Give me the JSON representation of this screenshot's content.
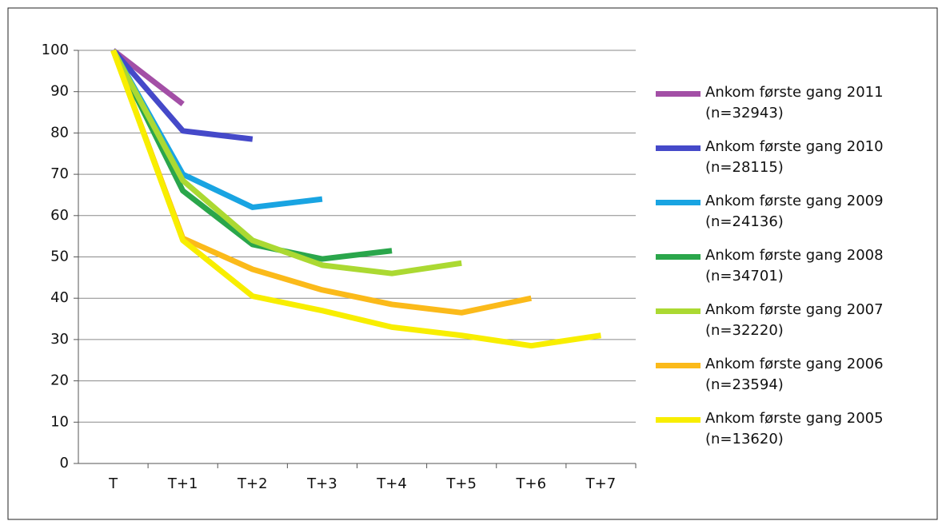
{
  "chart_data": {
    "type": "line",
    "categories": [
      "T",
      "T+1",
      "T+2",
      "T+3",
      "T+4",
      "T+5",
      "T+6",
      "T+7"
    ],
    "ylim": [
      0,
      100
    ],
    "yticks": [
      0,
      10,
      20,
      30,
      40,
      50,
      60,
      70,
      80,
      90,
      100
    ],
    "grid": true,
    "legend": "right",
    "series": [
      {
        "name": "Ankom første gang 2011\n(n=32943)",
        "color": "#a34fa6",
        "values": [
          100,
          87,
          null,
          null,
          null,
          null,
          null,
          null
        ]
      },
      {
        "name": "Ankom første gang 2010\n(n=28115)",
        "color": "#4549c9",
        "values": [
          100,
          80.5,
          78.5,
          null,
          null,
          null,
          null,
          null
        ]
      },
      {
        "name": "Ankom første gang 2009\n(n=24136)",
        "color": "#19a4e2",
        "values": [
          100,
          70,
          62,
          64,
          null,
          null,
          null,
          null
        ]
      },
      {
        "name": "Ankom første gang 2008\n(n=34701)",
        "color": "#2aa64b",
        "values": [
          100,
          66,
          53,
          49.5,
          51.5,
          null,
          null,
          null
        ]
      },
      {
        "name": "Ankom første gang 2007\n(n=32220)",
        "color": "#abd932",
        "values": [
          100,
          68.5,
          54,
          48,
          46,
          48.5,
          null,
          null
        ]
      },
      {
        "name": "Ankom første gang 2006\n(n=23594)",
        "color": "#fbba1a",
        "values": [
          100,
          54.5,
          47,
          42,
          38.5,
          36.5,
          40,
          null
        ]
      },
      {
        "name": "Ankom første gang 2005\n(n=13620)",
        "color": "#f8ee00",
        "values": [
          100,
          54,
          40.5,
          37,
          33,
          31,
          28.5,
          31
        ]
      }
    ]
  }
}
